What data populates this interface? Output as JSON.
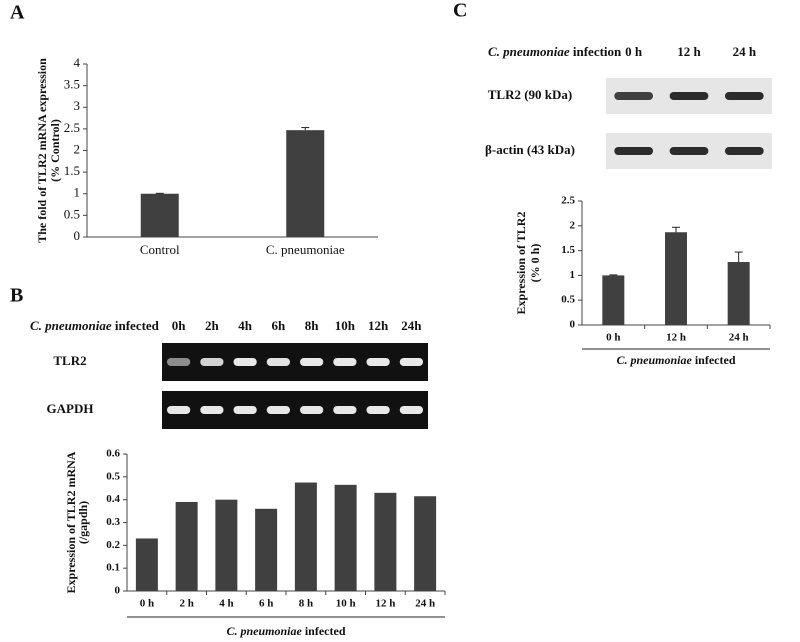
{
  "panel_labels": [
    "A",
    "B",
    "C"
  ],
  "blot_b": {
    "header": [
      "C. pneumoniae",
      "infected"
    ],
    "lanes": [
      "0h",
      "2h",
      "4h",
      "6h",
      "8h",
      "10h",
      "12h",
      "24h"
    ],
    "rows": [
      "TLR2",
      "GAPDH"
    ]
  },
  "blot_c": {
    "header": [
      "C. pneumoniae",
      "infection"
    ],
    "lanes": [
      "0 h",
      "12 h",
      "24 h"
    ],
    "rows": [
      "TLR2 (90 kDa)",
      "β-actin (43 kDa)"
    ]
  },
  "chart_data": [
    {
      "type": "bar",
      "ylabel": [
        "The fold of TLR2 mRNA expression",
        "(% Control)"
      ],
      "categories": [
        "Control",
        "C. pneumoniae"
      ],
      "values": [
        1.0,
        2.47
      ],
      "errors": [
        0.01,
        0.06
      ],
      "color": "#404040",
      "ylim": [
        0,
        4
      ],
      "yticks": [
        0,
        0.5,
        1,
        1.5,
        2,
        2.5,
        3,
        3.5,
        4
      ]
    },
    {
      "type": "bar",
      "ylabel": [
        "Expression of TLR2 mRNA",
        "(/gapdh)"
      ],
      "xlabel": [
        "C. pneumoniae",
        "infected"
      ],
      "categories": [
        "0 h",
        "2 h",
        "4 h",
        "6 h",
        "8 h",
        "10 h",
        "12 h",
        "24 h"
      ],
      "values": [
        0.23,
        0.39,
        0.4,
        0.36,
        0.475,
        0.465,
        0.43,
        0.415
      ],
      "color": "#404040",
      "ylim": [
        0,
        0.6
      ],
      "yticks": [
        0,
        0.1,
        0.2,
        0.3,
        0.4,
        0.5,
        0.6
      ]
    },
    {
      "type": "bar",
      "ylabel": [
        "Expression of TLR2",
        "(% 0 h)"
      ],
      "xlabel": [
        "C. pneumoniae",
        "infected"
      ],
      "categories": [
        "0 h",
        "12 h",
        "24 h"
      ],
      "values": [
        1.0,
        1.87,
        1.27
      ],
      "errors": [
        0.01,
        0.1,
        0.2
      ],
      "color": "#404040",
      "ylim": [
        0,
        2.5
      ],
      "yticks": [
        0,
        0.5,
        1,
        1.5,
        2,
        2.5
      ]
    }
  ]
}
